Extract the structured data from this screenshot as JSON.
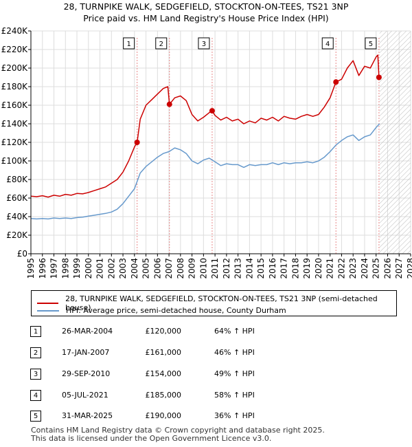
{
  "title_line1": "28, TURNPIKE WALK, SEDGEFIELD, STOCKTON-ON-TEES, TS21 3NP",
  "title_line2": "Price paid vs. HM Land Registry's House Price Index (HPI)",
  "colors": {
    "property": "#cc0000",
    "hpi": "#6699cc",
    "marker_line": "#e88888",
    "grid": "#dddddd",
    "hatch": "#bbbbbb"
  },
  "chart_data": {
    "type": "line",
    "xlim": [
      1995,
      2028
    ],
    "ylim": [
      0,
      240000
    ],
    "y_ticks": [
      0,
      20000,
      40000,
      60000,
      80000,
      100000,
      120000,
      140000,
      160000,
      180000,
      200000,
      220000,
      240000
    ],
    "y_tick_labels": [
      "£0",
      "£20K",
      "£40K",
      "£60K",
      "£80K",
      "£100K",
      "£120K",
      "£140K",
      "£160K",
      "£180K",
      "£200K",
      "£220K",
      "£240K"
    ],
    "x_ticks": [
      1995,
      1996,
      1997,
      1998,
      1999,
      2000,
      2001,
      2002,
      2003,
      2004,
      2005,
      2006,
      2007,
      2008,
      2009,
      2010,
      2011,
      2012,
      2013,
      2014,
      2015,
      2016,
      2017,
      2018,
      2019,
      2020,
      2021,
      2022,
      2023,
      2024,
      2025,
      2026,
      2027,
      2028
    ],
    "x_tick_labels": [
      "1995",
      "1996",
      "1997",
      "1998",
      "1999",
      "2000",
      "2001",
      "2002",
      "2003",
      "2004",
      "2005",
      "2006",
      "2007",
      "2008",
      "2009",
      "2010",
      "2011",
      "2012",
      "2013",
      "2014",
      "2015",
      "2016",
      "2017",
      "2018",
      "2019",
      "2020",
      "2021",
      "2022",
      "2023",
      "2024",
      "2025",
      "2026",
      "2027",
      "2028"
    ],
    "future_start": 2025.3,
    "series": [
      {
        "name": "28, TURNPIKE WALK, SEDGEFIELD, STOCKTON-ON-TEES, TS21 3NP (semi-detached house)",
        "color": "#cc0000",
        "points": [
          [
            1995.0,
            62000
          ],
          [
            1995.5,
            61500
          ],
          [
            1996.0,
            62500
          ],
          [
            1996.5,
            61000
          ],
          [
            1997.0,
            63000
          ],
          [
            1997.5,
            62000
          ],
          [
            1998.0,
            64000
          ],
          [
            1998.5,
            63000
          ],
          [
            1999.0,
            65000
          ],
          [
            1999.5,
            64500
          ],
          [
            2000.0,
            66000
          ],
          [
            2000.5,
            68000
          ],
          [
            2001.0,
            70000
          ],
          [
            2001.5,
            72000
          ],
          [
            2002.0,
            76000
          ],
          [
            2002.5,
            80000
          ],
          [
            2003.0,
            88000
          ],
          [
            2003.5,
            100000
          ],
          [
            2004.0,
            115000
          ],
          [
            2004.23,
            120000
          ],
          [
            2004.5,
            145000
          ],
          [
            2005.0,
            160000
          ],
          [
            2005.5,
            166000
          ],
          [
            2006.0,
            172000
          ],
          [
            2006.5,
            178000
          ],
          [
            2006.9,
            180000
          ],
          [
            2007.04,
            161000
          ],
          [
            2007.5,
            168000
          ],
          [
            2008.0,
            170000
          ],
          [
            2008.5,
            165000
          ],
          [
            2009.0,
            150000
          ],
          [
            2009.5,
            143000
          ],
          [
            2010.0,
            147000
          ],
          [
            2010.5,
            152000
          ],
          [
            2010.75,
            154000
          ],
          [
            2011.0,
            149000
          ],
          [
            2011.5,
            144000
          ],
          [
            2012.0,
            147000
          ],
          [
            2012.5,
            143000
          ],
          [
            2013.0,
            145000
          ],
          [
            2013.5,
            140000
          ],
          [
            2014.0,
            143000
          ],
          [
            2014.5,
            141000
          ],
          [
            2015.0,
            146000
          ],
          [
            2015.5,
            144000
          ],
          [
            2016.0,
            147000
          ],
          [
            2016.5,
            143000
          ],
          [
            2017.0,
            148000
          ],
          [
            2017.5,
            146000
          ],
          [
            2018.0,
            145000
          ],
          [
            2018.5,
            148000
          ],
          [
            2019.0,
            150000
          ],
          [
            2019.5,
            148000
          ],
          [
            2020.0,
            150000
          ],
          [
            2020.5,
            158000
          ],
          [
            2021.0,
            168000
          ],
          [
            2021.51,
            185000
          ],
          [
            2022.0,
            188000
          ],
          [
            2022.5,
            200000
          ],
          [
            2023.0,
            208000
          ],
          [
            2023.5,
            192000
          ],
          [
            2024.0,
            202000
          ],
          [
            2024.5,
            200000
          ],
          [
            2025.0,
            212000
          ],
          [
            2025.15,
            214000
          ],
          [
            2025.25,
            190000
          ],
          [
            2025.3,
            189000
          ]
        ]
      },
      {
        "name": "HPI: Average price, semi-detached house, County Durham",
        "color": "#6699cc",
        "points": [
          [
            1995.0,
            38000
          ],
          [
            1995.5,
            37500
          ],
          [
            1996.0,
            38000
          ],
          [
            1996.5,
            37500
          ],
          [
            1997.0,
            38500
          ],
          [
            1997.5,
            38000
          ],
          [
            1998.0,
            38500
          ],
          [
            1998.5,
            38000
          ],
          [
            1999.0,
            39000
          ],
          [
            1999.5,
            39500
          ],
          [
            2000.0,
            40500
          ],
          [
            2000.5,
            41500
          ],
          [
            2001.0,
            42500
          ],
          [
            2001.5,
            43500
          ],
          [
            2002.0,
            45000
          ],
          [
            2002.5,
            48000
          ],
          [
            2003.0,
            54000
          ],
          [
            2003.5,
            62000
          ],
          [
            2004.0,
            70000
          ],
          [
            2004.5,
            87000
          ],
          [
            2005.0,
            94000
          ],
          [
            2005.5,
            99000
          ],
          [
            2006.0,
            104000
          ],
          [
            2006.5,
            108000
          ],
          [
            2007.0,
            110000
          ],
          [
            2007.5,
            114000
          ],
          [
            2008.0,
            112000
          ],
          [
            2008.5,
            108000
          ],
          [
            2009.0,
            100000
          ],
          [
            2009.5,
            97000
          ],
          [
            2010.0,
            101000
          ],
          [
            2010.5,
            103000
          ],
          [
            2011.0,
            99000
          ],
          [
            2011.5,
            95000
          ],
          [
            2012.0,
            97000
          ],
          [
            2012.5,
            96000
          ],
          [
            2013.0,
            96000
          ],
          [
            2013.5,
            93000
          ],
          [
            2014.0,
            96000
          ],
          [
            2014.5,
            95000
          ],
          [
            2015.0,
            96000
          ],
          [
            2015.5,
            96000
          ],
          [
            2016.0,
            98000
          ],
          [
            2016.5,
            96000
          ],
          [
            2017.0,
            98000
          ],
          [
            2017.5,
            97000
          ],
          [
            2018.0,
            98000
          ],
          [
            2018.5,
            98000
          ],
          [
            2019.0,
            99000
          ],
          [
            2019.5,
            98000
          ],
          [
            2020.0,
            100000
          ],
          [
            2020.5,
            104000
          ],
          [
            2021.0,
            110000
          ],
          [
            2021.5,
            117000
          ],
          [
            2022.0,
            122000
          ],
          [
            2022.5,
            126000
          ],
          [
            2023.0,
            128000
          ],
          [
            2023.5,
            122000
          ],
          [
            2024.0,
            126000
          ],
          [
            2024.5,
            128000
          ],
          [
            2025.0,
            136000
          ],
          [
            2025.3,
            140000
          ]
        ]
      }
    ],
    "sales": [
      {
        "id": "1",
        "x": 2004.23,
        "price": 120000
      },
      {
        "id": "2",
        "x": 2007.04,
        "price": 161000
      },
      {
        "id": "3",
        "x": 2010.75,
        "price": 154000
      },
      {
        "id": "4",
        "x": 2021.51,
        "price": 185000
      },
      {
        "id": "5",
        "x": 2025.25,
        "price": 190000
      }
    ]
  },
  "legend": {
    "property_label": "28, TURNPIKE WALK, SEDGEFIELD, STOCKTON-ON-TEES, TS21 3NP (semi-detached house)",
    "hpi_label": "HPI: Average price, semi-detached house, County Durham"
  },
  "transactions": [
    {
      "num": "1",
      "date": "26-MAR-2004",
      "price": "£120,000",
      "pct": "64% ↑ HPI"
    },
    {
      "num": "2",
      "date": "17-JAN-2007",
      "price": "£161,000",
      "pct": "46% ↑ HPI"
    },
    {
      "num": "3",
      "date": "29-SEP-2010",
      "price": "£154,000",
      "pct": "49% ↑ HPI"
    },
    {
      "num": "4",
      "date": "05-JUL-2021",
      "price": "£185,000",
      "pct": "58% ↑ HPI"
    },
    {
      "num": "5",
      "date": "31-MAR-2025",
      "price": "£190,000",
      "pct": "36% ↑ HPI"
    }
  ],
  "footer": {
    "line1": "Contains HM Land Registry data © Crown copyright and database right 2025.",
    "line2": "This data is licensed under the Open Government Licence v3.0."
  }
}
